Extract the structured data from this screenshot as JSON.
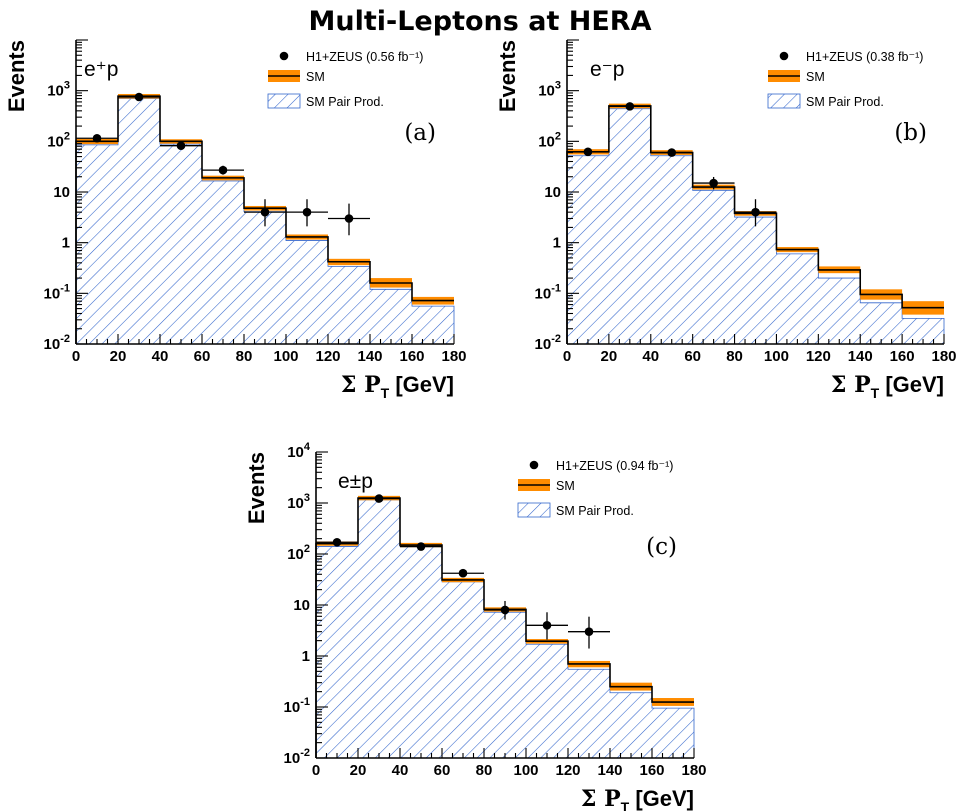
{
  "page": {
    "title": "Multi-Leptons at HERA"
  },
  "colors": {
    "sm_band": "#ff8c00",
    "sm_line": "#000000",
    "hatch": "#3366cc",
    "data_marker": "#000000"
  },
  "chart_data": [
    {
      "type": "bar",
      "id": "a",
      "tag": "(a)",
      "process_label": "e⁺p",
      "xlabel": "Σ P_T [GeV]",
      "ylabel": "Events",
      "xlim": [
        0,
        180
      ],
      "ylim": [
        0.01,
        10000
      ],
      "yscale": "log",
      "ytick_labels": [
        "10^-2",
        "10^-1",
        "1",
        "10",
        "10^2",
        "10^3"
      ],
      "legend_position": "top-right",
      "legend": [
        "H1+ZEUS (0.56 fb⁻¹)",
        "SM",
        "SM Pair Prod."
      ],
      "bin_edges": [
        0,
        20,
        40,
        60,
        80,
        100,
        120,
        140,
        160,
        180
      ],
      "series": [
        {
          "name": "SM",
          "values": [
            100,
            780,
            100,
            19,
            4.8,
            1.3,
            0.42,
            0.16,
            0.072
          ],
          "band_low": [
            88,
            700,
            90,
            17,
            4.3,
            1.15,
            0.36,
            0.13,
            0.06
          ],
          "band_high": [
            112,
            860,
            110,
            21,
            5.3,
            1.45,
            0.48,
            0.2,
            0.085
          ]
        },
        {
          "name": "SM Pair Prod.",
          "values": [
            85,
            700,
            88,
            16.5,
            4.1,
            1.1,
            0.34,
            0.12,
            0.056
          ]
        },
        {
          "name": "H1+ZEUS (0.56 fb⁻¹)",
          "x": [
            10,
            30,
            50,
            70,
            90,
            110,
            130
          ],
          "y": [
            115,
            750,
            82,
            27,
            4,
            4,
            3
          ],
          "yerr_low": [
            11,
            27,
            9,
            5,
            1.9,
            1.9,
            1.6
          ],
          "yerr_high": [
            11,
            27,
            9,
            6,
            3.2,
            3.2,
            2.9
          ]
        }
      ]
    },
    {
      "type": "bar",
      "id": "b",
      "tag": "(b)",
      "process_label": "e⁻p",
      "xlabel": "Σ P_T [GeV]",
      "ylabel": "Events",
      "xlim": [
        0,
        180
      ],
      "ylim": [
        0.01,
        10000
      ],
      "yscale": "log",
      "ytick_labels": [
        "10^-2",
        "10^-1",
        "1",
        "10",
        "10^2",
        "10^3"
      ],
      "legend_position": "top-right",
      "legend": [
        "H1+ZEUS (0.38 fb⁻¹)",
        "SM",
        "SM Pair Prod."
      ],
      "bin_edges": [
        0,
        20,
        40,
        60,
        80,
        100,
        120,
        140,
        160,
        180
      ],
      "series": [
        {
          "name": "SM",
          "values": [
            62,
            500,
            60,
            12.5,
            3.8,
            0.73,
            0.29,
            0.095,
            0.052
          ],
          "band_low": [
            55,
            450,
            54,
            11.2,
            3.4,
            0.65,
            0.25,
            0.075,
            0.038
          ],
          "band_high": [
            70,
            555,
            67,
            14,
            4.2,
            0.82,
            0.34,
            0.12,
            0.07
          ]
        },
        {
          "name": "SM Pair Prod.",
          "values": [
            52,
            440,
            52,
            10.8,
            3.2,
            0.6,
            0.2,
            0.065,
            0.032
          ]
        },
        {
          "name": "H1+ZEUS (0.38 fb⁻¹)",
          "x": [
            10,
            30,
            50,
            70,
            90
          ],
          "y": [
            62,
            490,
            60,
            15,
            4
          ],
          "yerr_low": [
            8,
            22,
            8,
            3.8,
            1.9
          ],
          "yerr_high": [
            8,
            22,
            8,
            4.8,
            3.2
          ]
        }
      ]
    },
    {
      "type": "bar",
      "id": "c",
      "tag": "(c)",
      "process_label": "e±p",
      "xlabel": "Σ P_T [GeV]",
      "ylabel": "Events",
      "xlim": [
        0,
        180
      ],
      "ylim": [
        0.01,
        10000
      ],
      "yscale": "log",
      "ytick_labels": [
        "10^-2",
        "10^-1",
        "1",
        "10",
        "10^2",
        "10^3",
        "10^4"
      ],
      "legend_position": "top-right",
      "legend": [
        "H1+ZEUS (0.94 fb⁻¹)",
        "SM",
        "SM Pair Prod."
      ],
      "bin_edges": [
        0,
        20,
        40,
        60,
        80,
        100,
        120,
        140,
        160,
        180
      ],
      "series": [
        {
          "name": "SM",
          "values": [
            160,
            1250,
            150,
            31,
            8.2,
            1.95,
            0.7,
            0.25,
            0.125
          ],
          "band_low": [
            145,
            1130,
            136,
            28,
            7.4,
            1.75,
            0.6,
            0.21,
            0.105
          ],
          "band_high": [
            176,
            1380,
            165,
            34,
            9,
            2.15,
            0.8,
            0.3,
            0.15
          ]
        },
        {
          "name": "SM Pair Prod.",
          "values": [
            140,
            1150,
            140,
            28.5,
            7.2,
            1.7,
            0.55,
            0.19,
            0.095
          ]
        },
        {
          "name": "H1+ZEUS (0.94 fb⁻¹)",
          "x": [
            10,
            30,
            50,
            70,
            90,
            110,
            130
          ],
          "y": [
            170,
            1220,
            140,
            42,
            8,
            4,
            3
          ],
          "yerr_low": [
            13,
            35,
            12,
            6.5,
            2.8,
            1.9,
            1.6
          ],
          "yerr_high": [
            13,
            35,
            12,
            7.5,
            4,
            3.2,
            2.9
          ]
        }
      ]
    }
  ]
}
